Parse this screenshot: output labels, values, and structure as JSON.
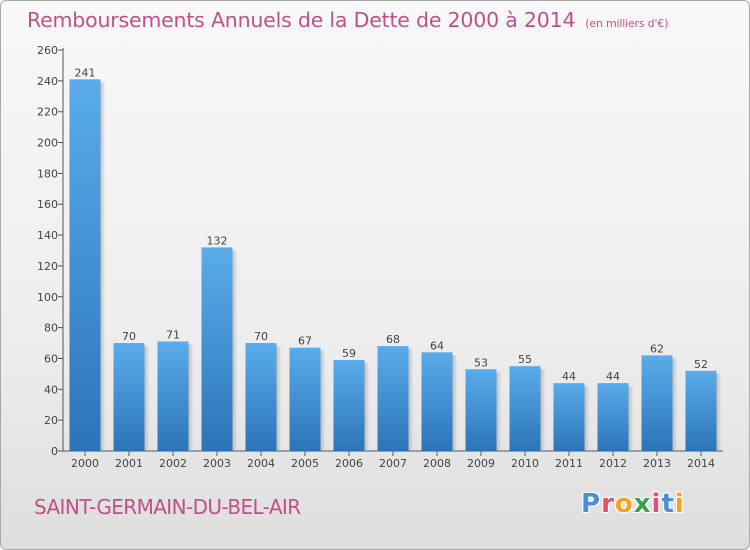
{
  "title": "Remboursements Annuels de la Dette de 2000 à 2014",
  "unit": "(en milliers d'€)",
  "commune": "SAINT-GERMAIN-DU-BEL-AIR",
  "logo": {
    "letters": [
      "P",
      "r",
      "o",
      "x",
      "i",
      "t",
      "i"
    ],
    "colors": [
      "#4a8ed8",
      "#e05070",
      "#f2a31a",
      "#3aa050",
      "#e05070",
      "#4a8ed8",
      "#f2a31a"
    ]
  },
  "colors": {
    "accent": "#c0508a",
    "bar_top": "#5aaceb",
    "bar_bottom": "#2b74b8",
    "label": "#444444"
  },
  "chart_data": {
    "type": "bar",
    "categories": [
      "2000",
      "2001",
      "2002",
      "2003",
      "2004",
      "2005",
      "2006",
      "2007",
      "2008",
      "2009",
      "2010",
      "2011",
      "2012",
      "2013",
      "2014"
    ],
    "values": [
      241,
      70,
      71,
      132,
      70,
      67,
      59,
      68,
      64,
      53,
      55,
      44,
      44,
      62,
      52
    ],
    "ylim": [
      0,
      260
    ],
    "yticks": [
      0,
      20,
      40,
      60,
      80,
      100,
      120,
      140,
      160,
      180,
      200,
      220,
      240,
      260
    ],
    "grid": false,
    "legend": "none"
  }
}
